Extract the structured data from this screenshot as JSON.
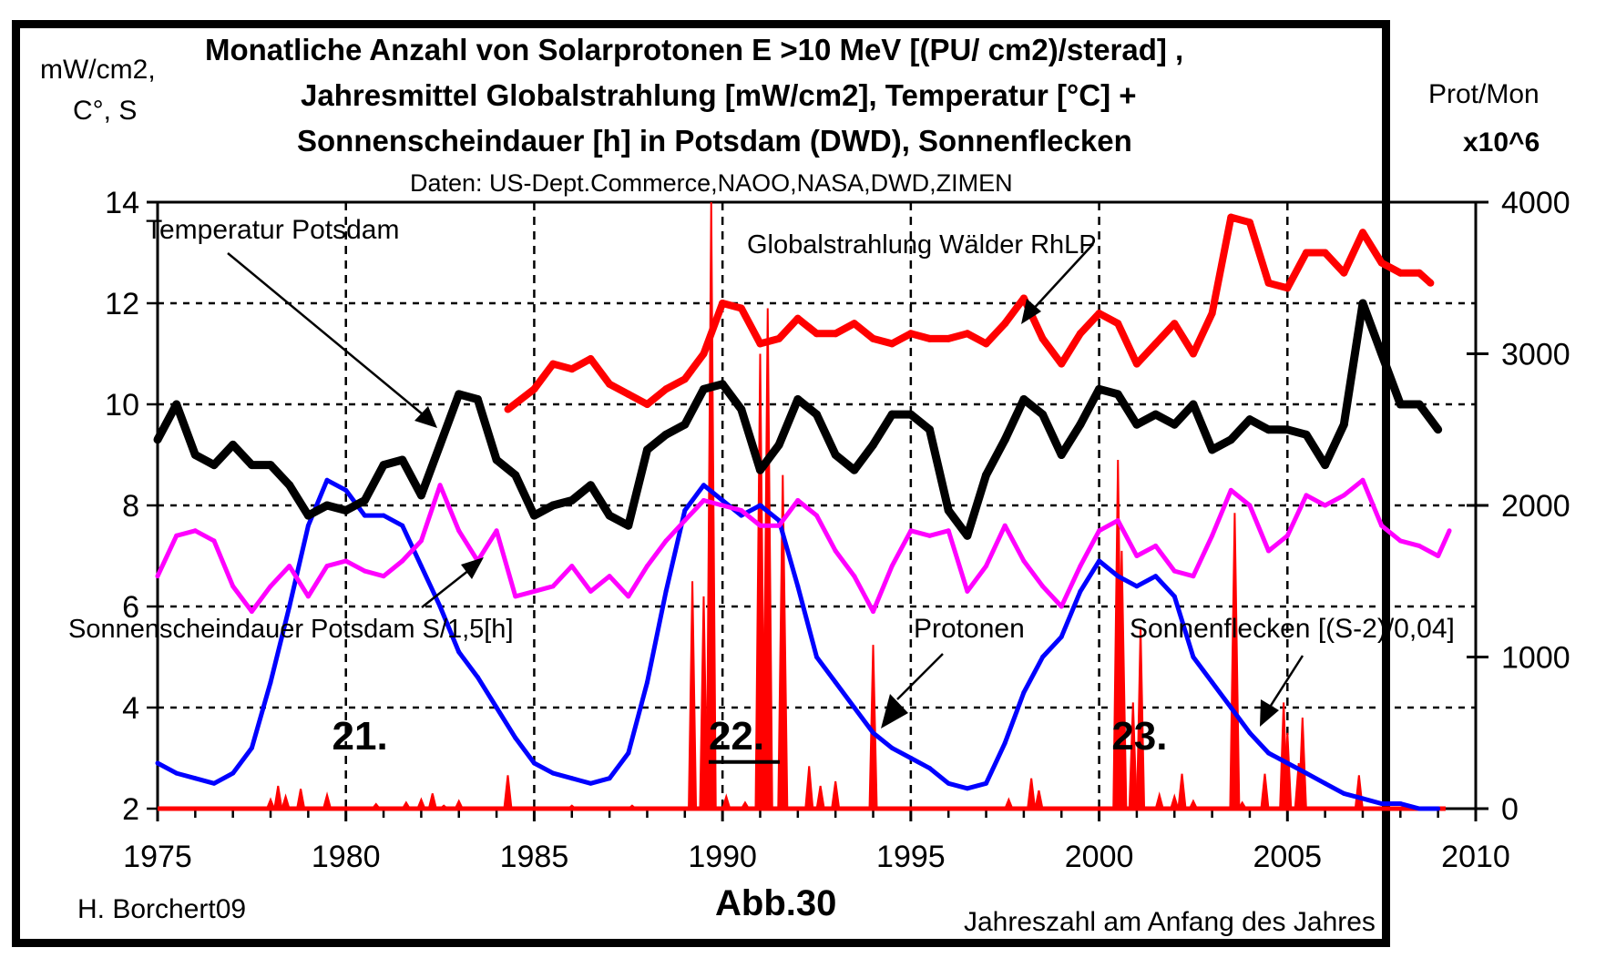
{
  "chart_data": {
    "type": "line",
    "title_lines": [
      "Monatliche Anzahl von Solarprotonen  E >10 MeV [(PU/ cm2)/sterad] ,",
      "Jahresmittel Globalstrahlung [mW/cm2], Temperatur [°C] +",
      "Sonnenscheindauer [h] in Potsdam (DWD), Sonnenflecken"
    ],
    "subtitle": "Daten: US-Dept.Commerce,NAOO,NASA,DWD,ZIMEN",
    "ylabel_left": [
      "mW/cm2,",
      "C°, S"
    ],
    "ylabel_right": [
      "Prot/Mon",
      "x10^6"
    ],
    "xlabel": "Jahreszahl am Anfang des Jahres",
    "author": "H. Borchert09",
    "figure_label": "Abb.30",
    "x_range": [
      1975,
      2010
    ],
    "y_left_range": [
      2,
      14
    ],
    "y_right_range": [
      0,
      4000
    ],
    "x_ticks": [
      "1975",
      "1980",
      "1985",
      "1990",
      "1995",
      "2000",
      "2005",
      "2010"
    ],
    "y_left_ticks": [
      "2",
      "4",
      "6",
      "8",
      "10",
      "12",
      "14"
    ],
    "y_right_ticks": [
      "0",
      "1000",
      "2000",
      "3000",
      "4000"
    ],
    "grid": true,
    "cycle_labels": [
      {
        "text": "21.",
        "x": 1980.6,
        "y": 3.5
      },
      {
        "text": "22.",
        "x": 1990.6,
        "y": 3.5
      },
      {
        "text": "23.",
        "x": 2001.3,
        "y": 3.5
      }
    ],
    "annotations": [
      {
        "text": "Temperatur Potsdam",
        "target": "temperature"
      },
      {
        "text": "Globalstrahlung Wälder RhLP",
        "target": "global_radiation"
      },
      {
        "text": "Sonnenscheindauer Potsdam S/1,5[h]",
        "target": "sunshine"
      },
      {
        "text": "Protonen",
        "target": "protons"
      },
      {
        "text": "Sonnenflecken [(S-2)/0,04]",
        "target": "sunspots"
      }
    ],
    "series": [
      {
        "name": "Temperatur Potsdam",
        "key": "temperature",
        "color": "#000000",
        "axis": "left",
        "x": [
          1975.0,
          1975.5,
          1976.0,
          1976.5,
          1977.0,
          1977.5,
          1978.0,
          1978.5,
          1979.0,
          1979.5,
          1980.0,
          1980.5,
          1981.0,
          1981.5,
          1982.0,
          1982.5,
          1983.0,
          1983.5,
          1984.0,
          1984.5,
          1985.0,
          1985.5,
          1986.0,
          1986.5,
          1987.0,
          1987.5,
          1988.0,
          1988.5,
          1989.0,
          1989.5,
          1990.0,
          1990.5,
          1991.0,
          1991.5,
          1992.0,
          1992.5,
          1993.0,
          1993.5,
          1994.0,
          1994.5,
          1995.0,
          1995.5,
          1996.0,
          1996.5,
          1997.0,
          1997.5,
          1998.0,
          1998.5,
          1999.0,
          1999.5,
          2000.0,
          2000.5,
          2001.0,
          2001.5,
          2002.0,
          2002.5,
          2003.0,
          2003.5,
          2004.0,
          2004.5,
          2005.0,
          2005.5,
          2006.0,
          2006.5,
          2007.0,
          2007.5,
          2008.0,
          2008.5,
          2009.0
        ],
        "values": [
          9.3,
          10.0,
          9.0,
          8.8,
          9.2,
          8.8,
          8.8,
          8.4,
          7.8,
          8.0,
          7.9,
          8.1,
          8.8,
          8.9,
          8.2,
          9.2,
          10.2,
          10.1,
          8.9,
          8.6,
          7.8,
          8.0,
          8.1,
          8.4,
          7.8,
          7.6,
          9.1,
          9.4,
          9.6,
          10.3,
          10.4,
          9.9,
          8.7,
          9.2,
          10.1,
          9.8,
          9.0,
          8.7,
          9.2,
          9.8,
          9.8,
          9.5,
          7.9,
          7.4,
          8.6,
          9.3,
          10.1,
          9.8,
          9.0,
          9.6,
          10.3,
          10.2,
          9.6,
          9.8,
          9.6,
          10.0,
          9.1,
          9.3,
          9.7,
          9.5,
          9.5,
          9.4,
          8.8,
          9.6,
          12.0,
          11.0,
          10.0,
          10.0,
          9.5
        ]
      },
      {
        "name": "Globalstrahlung Wälder RhLP",
        "key": "global_radiation",
        "color": "#ff0000",
        "axis": "left",
        "x": [
          1984.3,
          1985.0,
          1985.5,
          1986.0,
          1986.5,
          1987.0,
          1987.5,
          1988.0,
          1988.5,
          1989.0,
          1989.5,
          1990.0,
          1990.5,
          1991.0,
          1991.5,
          1992.0,
          1992.5,
          1993.0,
          1993.5,
          1994.0,
          1994.5,
          1995.0,
          1995.5,
          1996.0,
          1996.5,
          1997.0,
          1997.5,
          1998.0,
          1998.5,
          1999.0,
          1999.5,
          2000.0,
          2000.5,
          2001.0,
          2001.5,
          2002.0,
          2002.5,
          2003.0,
          2003.5,
          2004.0,
          2004.5,
          2005.0,
          2005.5,
          2006.0,
          2006.5,
          2007.0,
          2007.5,
          2008.0,
          2008.5,
          2008.8
        ],
        "values": [
          9.9,
          10.3,
          10.8,
          10.7,
          10.9,
          10.4,
          10.2,
          10.0,
          10.3,
          10.5,
          11.0,
          12.0,
          11.9,
          11.2,
          11.3,
          11.7,
          11.4,
          11.4,
          11.6,
          11.3,
          11.2,
          11.4,
          11.3,
          11.3,
          11.4,
          11.2,
          11.6,
          12.1,
          11.3,
          10.8,
          11.4,
          11.8,
          11.6,
          10.8,
          11.2,
          11.6,
          11.0,
          11.8,
          13.7,
          13.6,
          12.4,
          12.3,
          13.0,
          13.0,
          12.6,
          13.4,
          12.8,
          12.6,
          12.6,
          12.4
        ]
      },
      {
        "name": "Sonnenscheindauer Potsdam S/1,5[h]",
        "key": "sunshine",
        "color": "#ff00ff",
        "axis": "left",
        "x": [
          1975.0,
          1975.5,
          1976.0,
          1976.5,
          1977.0,
          1977.5,
          1978.0,
          1978.5,
          1979.0,
          1979.5,
          1980.0,
          1980.5,
          1981.0,
          1981.5,
          1982.0,
          1982.5,
          1983.0,
          1983.5,
          1984.0,
          1984.5,
          1985.0,
          1985.5,
          1986.0,
          1986.5,
          1987.0,
          1987.5,
          1988.0,
          1988.5,
          1989.0,
          1989.5,
          1990.0,
          1990.5,
          1991.0,
          1991.5,
          1992.0,
          1992.5,
          1993.0,
          1993.5,
          1994.0,
          1994.5,
          1995.0,
          1995.5,
          1996.0,
          1996.5,
          1997.0,
          1997.5,
          1998.0,
          1998.5,
          1999.0,
          1999.5,
          2000.0,
          2000.5,
          2001.0,
          2001.5,
          2002.0,
          2002.5,
          2003.0,
          2003.5,
          2004.0,
          2004.5,
          2005.0,
          2005.5,
          2006.0,
          2006.5,
          2007.0,
          2007.5,
          2008.0,
          2008.5,
          2009.0,
          2009.3
        ],
        "values": [
          6.6,
          7.4,
          7.5,
          7.3,
          6.4,
          5.9,
          6.4,
          6.8,
          6.2,
          6.8,
          6.9,
          6.7,
          6.6,
          6.9,
          7.3,
          8.4,
          7.5,
          6.9,
          7.5,
          6.2,
          6.3,
          6.4,
          6.8,
          6.3,
          6.6,
          6.2,
          6.8,
          7.3,
          7.7,
          8.1,
          8.0,
          7.9,
          7.6,
          7.6,
          8.1,
          7.8,
          7.1,
          6.6,
          5.9,
          6.8,
          7.5,
          7.4,
          7.5,
          6.3,
          6.8,
          7.6,
          6.9,
          6.4,
          6.0,
          6.8,
          7.5,
          7.7,
          7.0,
          7.2,
          6.7,
          6.6,
          7.4,
          8.3,
          8.0,
          7.1,
          7.4,
          8.2,
          8.0,
          8.2,
          8.5,
          7.6,
          7.3,
          7.2,
          7.0,
          7.5
        ]
      },
      {
        "name": "Sonnenflecken [(S-2)/0,04]",
        "key": "sunspots",
        "color": "#0000ff",
        "axis": "left",
        "x": [
          1975.0,
          1975.5,
          1976.0,
          1976.5,
          1977.0,
          1977.5,
          1978.0,
          1978.5,
          1979.0,
          1979.5,
          1980.0,
          1980.5,
          1981.0,
          1981.5,
          1982.0,
          1982.5,
          1983.0,
          1983.5,
          1984.0,
          1984.5,
          1985.0,
          1985.5,
          1986.0,
          1986.5,
          1987.0,
          1987.5,
          1988.0,
          1988.5,
          1989.0,
          1989.5,
          1990.0,
          1990.5,
          1991.0,
          1991.5,
          1992.0,
          1992.5,
          1993.0,
          1993.5,
          1994.0,
          1994.5,
          1995.0,
          1995.5,
          1996.0,
          1996.5,
          1997.0,
          1997.5,
          1998.0,
          1998.5,
          1999.0,
          1999.5,
          2000.0,
          2000.5,
          2001.0,
          2001.5,
          2002.0,
          2002.5,
          2003.0,
          2003.5,
          2004.0,
          2004.5,
          2005.0,
          2005.5,
          2006.0,
          2006.5,
          2007.0,
          2007.5,
          2008.0,
          2008.5,
          2009.0
        ],
        "values": [
          2.9,
          2.7,
          2.6,
          2.5,
          2.7,
          3.2,
          4.5,
          6.0,
          7.6,
          8.5,
          8.3,
          7.8,
          7.8,
          7.6,
          6.8,
          6.0,
          5.1,
          4.6,
          4.0,
          3.4,
          2.9,
          2.7,
          2.6,
          2.5,
          2.6,
          3.1,
          4.5,
          6.3,
          7.9,
          8.4,
          8.1,
          7.8,
          8.0,
          7.7,
          6.4,
          5.0,
          4.5,
          4.0,
          3.5,
          3.2,
          3.0,
          2.8,
          2.5,
          2.4,
          2.5,
          3.3,
          4.3,
          5.0,
          5.4,
          6.3,
          6.9,
          6.6,
          6.4,
          6.6,
          6.2,
          5.0,
          4.5,
          4.0,
          3.5,
          3.1,
          2.9,
          2.7,
          2.5,
          2.3,
          2.2,
          2.1,
          2.1,
          2.0,
          2.0
        ]
      },
      {
        "name": "Protonen",
        "key": "protons",
        "color": "#ff0000",
        "axis": "right",
        "type": "spikes",
        "x": [
          1978.0,
          1978.2,
          1978.4,
          1978.8,
          1979.5,
          1980.8,
          1981.6,
          1982.0,
          1982.3,
          1982.6,
          1983.0,
          1984.3,
          1986.0,
          1987.6,
          1989.2,
          1989.5,
          1989.7,
          1990.1,
          1990.6,
          1991.0,
          1991.2,
          1991.6,
          1992.3,
          1992.6,
          1993.0,
          1994.0,
          1997.6,
          1998.2,
          1998.4,
          2000.5,
          2000.6,
          2000.9,
          2001.1,
          2001.6,
          2002.0,
          2002.2,
          2002.5,
          2003.6,
          2003.8,
          2004.4,
          2004.9,
          2005.0,
          2005.3,
          2005.4,
          2006.9
        ],
        "values": [
          60,
          150,
          80,
          130,
          90,
          30,
          40,
          60,
          100,
          20,
          50,
          220,
          20,
          20,
          1500,
          1400,
          4000,
          80,
          40,
          3000,
          3300,
          2200,
          280,
          150,
          180,
          1080,
          60,
          200,
          120,
          2300,
          1700,
          700,
          1200,
          90,
          80,
          230,
          50,
          1950,
          40,
          230,
          700,
          500,
          300,
          600,
          220
        ]
      }
    ]
  }
}
